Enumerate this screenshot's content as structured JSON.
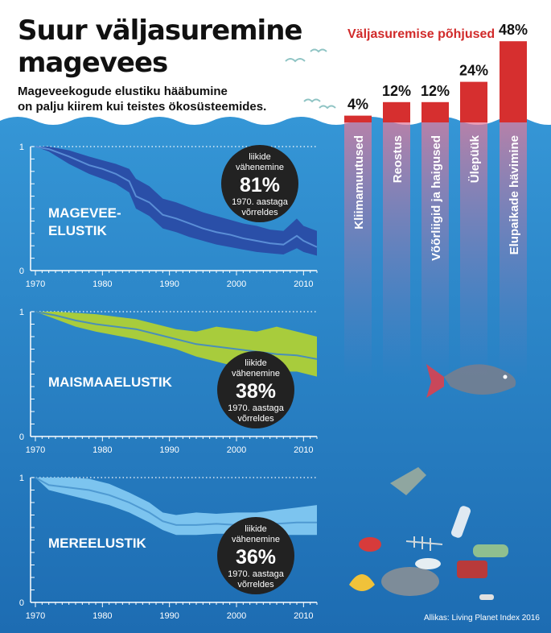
{
  "title_line1": "Suur väljasuremine",
  "title_line2": "magevees",
  "subtitle_line1": "Mageveekogude elustiku hääbumine",
  "subtitle_line2": "on palju kiirem kui teistes ökosüsteemides.",
  "source": "Allikas: Living Planet Index 2016",
  "colors": {
    "water_top": "#2f8fd0",
    "water_bottom": "#1f6fb5",
    "freshwater": "#2a4fa8",
    "land": "#a8cc3c",
    "marine": "#7cc4ef",
    "causes": "#d62f2f",
    "badge": "#222222"
  },
  "chart_data": [
    {
      "type": "area",
      "label_lines": [
        "MAGEVEE-",
        "ELUSTIK"
      ],
      "x_ticks": [
        "1970",
        "1980",
        "1990",
        "2000",
        "2010"
      ],
      "y_ticks": [
        "1",
        "0"
      ],
      "ylim": [
        0,
        1
      ],
      "xlim": [
        1970,
        2012
      ],
      "x": [
        1970,
        1972,
        1975,
        1978,
        1980,
        1982,
        1984,
        1985,
        1987,
        1989,
        1991,
        1993,
        1995,
        1997,
        1999,
        2001,
        2003,
        2005,
        2007,
        2009,
        2010,
        2012
      ],
      "mean": [
        1.0,
        0.98,
        0.92,
        0.85,
        0.82,
        0.78,
        0.72,
        0.6,
        0.55,
        0.45,
        0.42,
        0.38,
        0.34,
        0.31,
        0.29,
        0.26,
        0.24,
        0.22,
        0.21,
        0.28,
        0.24,
        0.19
      ],
      "upper": [
        1.0,
        1.0,
        0.97,
        0.92,
        0.89,
        0.86,
        0.82,
        0.74,
        0.68,
        0.58,
        0.55,
        0.51,
        0.47,
        0.44,
        0.41,
        0.38,
        0.36,
        0.33,
        0.32,
        0.42,
        0.36,
        0.32
      ],
      "lower": [
        1.0,
        0.96,
        0.86,
        0.78,
        0.74,
        0.7,
        0.63,
        0.5,
        0.44,
        0.34,
        0.31,
        0.27,
        0.24,
        0.21,
        0.19,
        0.17,
        0.15,
        0.14,
        0.13,
        0.18,
        0.15,
        0.12
      ],
      "badge": {
        "line1": "liikide",
        "line2": "vähenemine",
        "value": "81%",
        "line3": "1970. aastaga",
        "line4": "võrreldes"
      }
    },
    {
      "type": "area",
      "label_lines": [
        "MAISMAAELUSTIK"
      ],
      "x_ticks": [
        "1970",
        "1980",
        "1990",
        "2000",
        "2010"
      ],
      "y_ticks": [
        "1",
        "0"
      ],
      "ylim": [
        0,
        1
      ],
      "xlim": [
        1970,
        2012
      ],
      "x": [
        1970,
        1973,
        1976,
        1979,
        1982,
        1985,
        1988,
        1991,
        1994,
        1997,
        2000,
        2003,
        2006,
        2009,
        2012
      ],
      "mean": [
        1.0,
        0.97,
        0.93,
        0.9,
        0.88,
        0.86,
        0.82,
        0.78,
        0.74,
        0.72,
        0.7,
        0.68,
        0.66,
        0.65,
        0.62
      ],
      "upper": [
        1.0,
        1.0,
        0.99,
        0.98,
        0.96,
        0.94,
        0.9,
        0.86,
        0.84,
        0.88,
        0.86,
        0.84,
        0.88,
        0.84,
        0.8
      ],
      "lower": [
        1.0,
        0.94,
        0.88,
        0.84,
        0.81,
        0.78,
        0.74,
        0.7,
        0.64,
        0.6,
        0.56,
        0.54,
        0.52,
        0.52,
        0.48
      ],
      "badge": {
        "line1": "liikide",
        "line2": "vähenemine",
        "value": "38%",
        "line3": "1970. aastaga",
        "line4": "võrreldes"
      }
    },
    {
      "type": "area",
      "label_lines": [
        "MEREELUSTIK"
      ],
      "x_ticks": [
        "1970",
        "1980",
        "1990",
        "2000",
        "2010"
      ],
      "y_ticks": [
        "1",
        "0"
      ],
      "ylim": [
        0,
        1
      ],
      "xlim": [
        1970,
        2012
      ],
      "x": [
        1970,
        1972,
        1975,
        1978,
        1981,
        1984,
        1987,
        1989,
        1991,
        1994,
        1997,
        2000,
        2003,
        2006,
        2009,
        2012
      ],
      "mean": [
        1.0,
        0.94,
        0.92,
        0.9,
        0.86,
        0.8,
        0.72,
        0.65,
        0.62,
        0.62,
        0.63,
        0.62,
        0.62,
        0.63,
        0.64,
        0.64
      ],
      "upper": [
        1.0,
        1.0,
        1.0,
        0.99,
        0.95,
        0.88,
        0.8,
        0.72,
        0.7,
        0.72,
        0.71,
        0.72,
        0.72,
        0.74,
        0.76,
        0.78
      ],
      "lower": [
        1.0,
        0.9,
        0.86,
        0.82,
        0.78,
        0.72,
        0.64,
        0.58,
        0.54,
        0.54,
        0.55,
        0.55,
        0.55,
        0.54,
        0.54,
        0.54
      ],
      "badge": {
        "line1": "liikide",
        "line2": "vähenemine",
        "value": "36%",
        "line3": "1970. aastaga",
        "line4": "võrreldes"
      }
    },
    {
      "type": "bar",
      "title": "Väljasuremise põhjused",
      "categories": [
        "Kliimamuutused",
        "Reostus",
        "Võõrliigid ja haigused",
        "Ülepüük",
        "Elupaikade hävimine"
      ],
      "values": [
        4,
        12,
        12,
        24,
        48
      ],
      "labels": [
        "4%",
        "12%",
        "12%",
        "24%",
        "48%"
      ]
    }
  ]
}
